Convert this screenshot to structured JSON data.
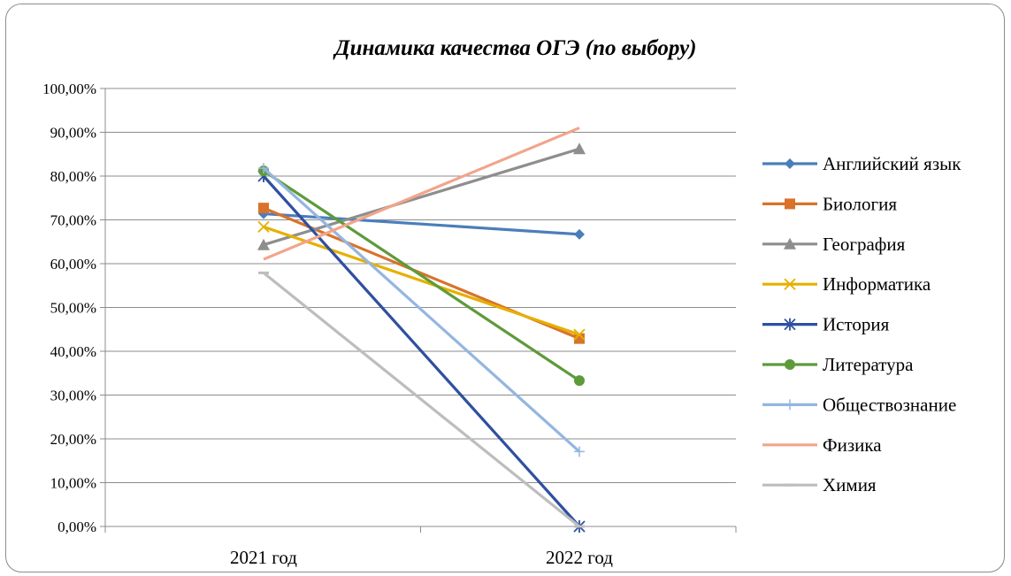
{
  "chart_data": {
    "type": "line",
    "title": "Динамика качества ОГЭ (по выбору)",
    "categories": [
      "2021 год",
      "2022 год"
    ],
    "ylim": [
      0,
      100
    ],
    "yticks": [
      "0,00%",
      "10,00%",
      "20,00%",
      "30,00%",
      "40,00%",
      "50,00%",
      "60,00%",
      "70,00%",
      "80,00%",
      "90,00%",
      "100,00%"
    ],
    "grid": true,
    "legend_position": "right",
    "series": [
      {
        "name": "Английский язык",
        "values": [
          71.4,
          66.7
        ],
        "color": "#4a7ebb",
        "marker": "diamond"
      },
      {
        "name": "Биология",
        "values": [
          72.7,
          42.9
        ],
        "color": "#d9722b",
        "marker": "square"
      },
      {
        "name": "География",
        "values": [
          64.3,
          86.2
        ],
        "color": "#8e8e8e",
        "marker": "triangle"
      },
      {
        "name": "Информатика",
        "values": [
          68.4,
          43.8
        ],
        "color": "#e6b000",
        "marker": "x"
      },
      {
        "name": "История",
        "values": [
          80.0,
          0.0
        ],
        "color": "#2f4fa0",
        "marker": "star"
      },
      {
        "name": "Литература",
        "values": [
          81.2,
          33.3
        ],
        "color": "#5d9b3a",
        "marker": "circle"
      },
      {
        "name": "Обществознание",
        "values": [
          81.8,
          17.1
        ],
        "color": "#94b6e0",
        "marker": "plus"
      },
      {
        "name": "Физика",
        "values": [
          61.0,
          91.0
        ],
        "color": "#f2a58a",
        "marker": "none"
      },
      {
        "name": "Химия",
        "values": [
          57.9,
          0.0
        ],
        "color": "#bdbdbd",
        "marker": "dash"
      }
    ]
  }
}
